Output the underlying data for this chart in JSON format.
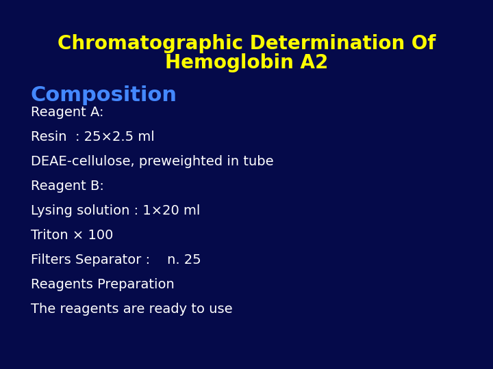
{
  "title_line1": "Chromatographic Determination Of",
  "title_line2": "Hemoglobin A2",
  "title_color": "#ffff00",
  "title_fontsize": 20,
  "subtitle": "Composition",
  "subtitle_color": "#4488ff",
  "subtitle_fontsize": 22,
  "body_lines": [
    "Reagent A:",
    "Resin  : 25×2.5 ml",
    "DEAE-cellulose, preweighted in tube",
    "Reagent B:",
    "Lysing solution : 1×20 ml",
    "Triton × 100",
    "Filters Separator :    n. 25",
    "Reagents Preparation",
    "The reagents are ready to use"
  ],
  "body_color": "#ffffff",
  "body_fontsize": 14,
  "bg_color": "#050a4a",
  "fig_width": 7.2,
  "fig_height": 5.4
}
